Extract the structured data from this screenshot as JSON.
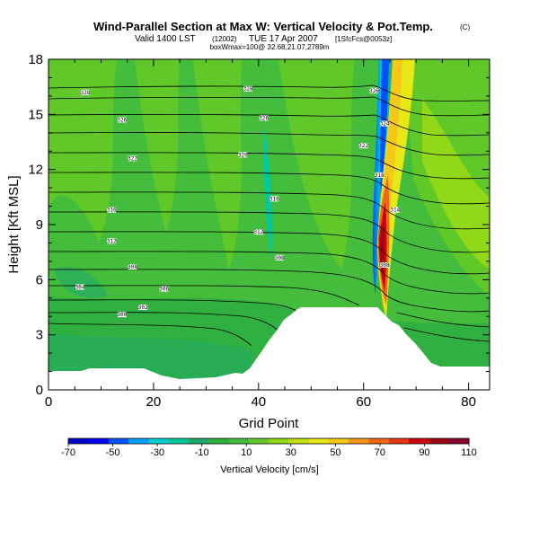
{
  "chart_data": {
    "type": "heatmap",
    "title": "Wind-Parallel Section at Max W: Vertical Velocity & Pot.Temp.",
    "title_mark": "(C)",
    "subtitle_valid": "Valid 1400 LST",
    "subtitle_run": "(12002)",
    "subtitle_date": "TUE 17 Apr 2007",
    "subtitle_tag": "[1SfcFcs@0053z]",
    "subtitle_box": "boxWmax=100@ 32.68,21.07,2789m",
    "xlabel": "Grid Point",
    "ylabel": "Height [Kft MSL]",
    "xlim": [
      0,
      84
    ],
    "ylim": [
      0,
      18
    ],
    "xticks": [
      "0",
      "20",
      "40",
      "60",
      "80"
    ],
    "yticks": [
      "0",
      "3",
      "6",
      "9",
      "12",
      "15",
      "18"
    ],
    "colorbar": {
      "label": "Vertical Velocity [cm/s]",
      "range": [
        -70,
        110
      ],
      "tick_labels": [
        "-70",
        "-50",
        "-30",
        "-10",
        "10",
        "30",
        "50",
        "70",
        "90",
        "110"
      ],
      "colors": [
        "#0000c8",
        "#0000f0",
        "#0050ff",
        "#00a0ff",
        "#00d0d0",
        "#00c8a0",
        "#20a868",
        "#30b040",
        "#44bc3c",
        "#60c828",
        "#90d818",
        "#c0e010",
        "#e8e818",
        "#f8c818",
        "#f89818",
        "#f06818",
        "#e83818",
        "#d00010",
        "#a00018",
        "#800030"
      ]
    },
    "terrain_note": "white area = terrain below ground",
    "contour_labels": [
      {
        "text": "328",
        "x": 7,
        "y": 16.2
      },
      {
        "text": "326",
        "x": 14,
        "y": 14.7
      },
      {
        "text": "322",
        "x": 16,
        "y": 12.6
      },
      {
        "text": "316",
        "x": 12,
        "y": 9.8
      },
      {
        "text": "312",
        "x": 12,
        "y": 8.1
      },
      {
        "text": "308",
        "x": 16,
        "y": 6.7
      },
      {
        "text": "304",
        "x": 6,
        "y": 5.6
      },
      {
        "text": "306",
        "x": 22,
        "y": 5.5
      },
      {
        "text": "302",
        "x": 18,
        "y": 4.5
      },
      {
        "text": "300",
        "x": 14,
        "y": 4.1
      },
      {
        "text": "328",
        "x": 38,
        "y": 16.4
      },
      {
        "text": "326",
        "x": 41,
        "y": 14.8
      },
      {
        "text": "320",
        "x": 37,
        "y": 12.8
      },
      {
        "text": "316",
        "x": 43,
        "y": 10.4
      },
      {
        "text": "312",
        "x": 40,
        "y": 8.6
      },
      {
        "text": "308",
        "x": 44,
        "y": 7.2
      },
      {
        "text": "326",
        "x": 62,
        "y": 16.3
      },
      {
        "text": "324",
        "x": 64,
        "y": 14.5
      },
      {
        "text": "322",
        "x": 60,
        "y": 13.3
      },
      {
        "text": "318",
        "x": 63,
        "y": 11.7
      },
      {
        "text": "314",
        "x": 66,
        "y": 9.8
      },
      {
        "text": "308",
        "x": 64,
        "y": 6.8
      }
    ]
  }
}
